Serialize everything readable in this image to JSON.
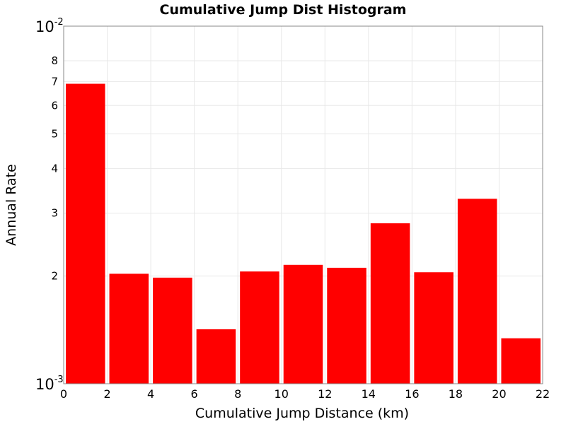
{
  "chart_data": {
    "type": "bar",
    "title": "Cumulative Jump Dist Histogram",
    "xlabel": "Cumulative Jump Distance (km)",
    "ylabel": "Annual Rate",
    "x_scale": "linear",
    "y_scale": "log",
    "xlim": [
      0,
      22
    ],
    "ylim": [
      0.001,
      0.01
    ],
    "x_ticks": [
      "0",
      "2",
      "4",
      "6",
      "8",
      "10",
      "12",
      "14",
      "16",
      "18",
      "20",
      "22"
    ],
    "y_major_ticks": [
      {
        "base": "10",
        "exponent": "-3"
      },
      {
        "base": "10",
        "exponent": "-2"
      }
    ],
    "y_minor_ticks": [
      "2",
      "3",
      "4",
      "5",
      "6",
      "7",
      "8"
    ],
    "grid": true,
    "bar_color": "#ff0000",
    "bars": [
      {
        "x_start": 0,
        "x_end": 2,
        "value": 0.0069
      },
      {
        "x_start": 2,
        "x_end": 4,
        "value": 0.00203
      },
      {
        "x_start": 4,
        "x_end": 6,
        "value": 0.00198
      },
      {
        "x_start": 6,
        "x_end": 8,
        "value": 0.00142
      },
      {
        "x_start": 8,
        "x_end": 10,
        "value": 0.00206
      },
      {
        "x_start": 10,
        "x_end": 12,
        "value": 0.00215
      },
      {
        "x_start": 12,
        "x_end": 14,
        "value": 0.00211
      },
      {
        "x_start": 14,
        "x_end": 16,
        "value": 0.00281
      },
      {
        "x_start": 16,
        "x_end": 18,
        "value": 0.00205
      },
      {
        "x_start": 18,
        "x_end": 20,
        "value": 0.00329
      },
      {
        "x_start": 20,
        "x_end": 22,
        "value": 0.00134
      }
    ]
  }
}
